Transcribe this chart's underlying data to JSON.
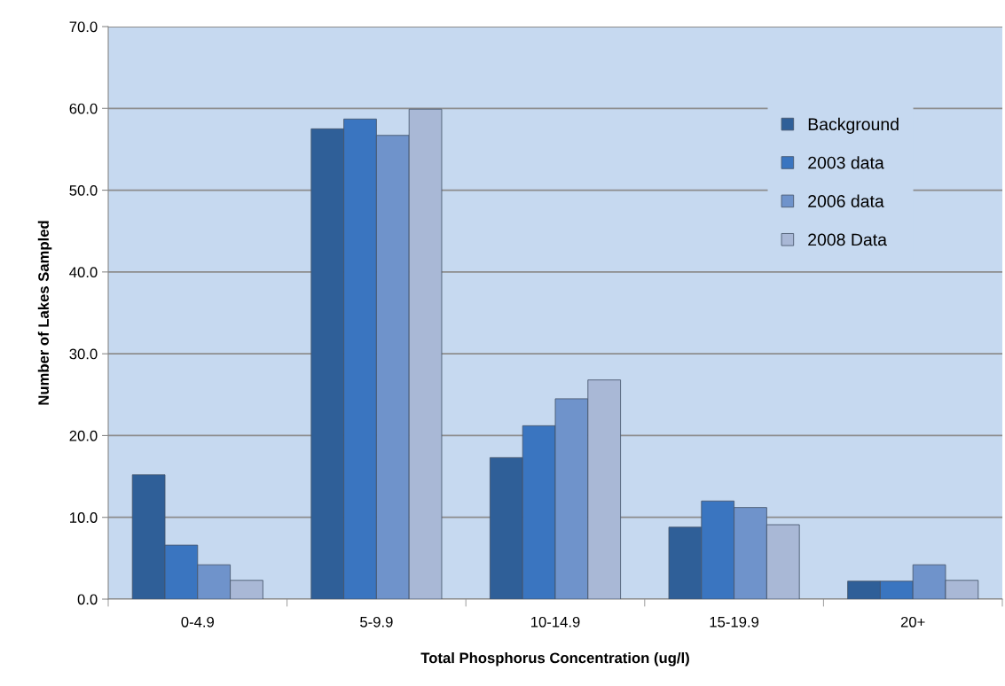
{
  "chart_data": {
    "type": "bar",
    "xlabel": "Total Phosphorus Concentration (ug/l)",
    "ylabel": "Number of Lakes Sampled",
    "categories": [
      "0-4.9",
      "5-9.9",
      "10-14.9",
      "15-19.9",
      "20+"
    ],
    "series": [
      {
        "name": "Background",
        "color": "#2f5f98",
        "values": [
          15.2,
          57.5,
          17.3,
          8.8,
          2.2
        ]
      },
      {
        "name": "2003 data",
        "color": "#3a75c0",
        "values": [
          6.6,
          58.7,
          21.2,
          12.0,
          2.2
        ]
      },
      {
        "name": "2006 data",
        "color": "#6f93cb",
        "values": [
          4.2,
          56.7,
          24.5,
          11.2,
          4.2
        ]
      },
      {
        "name": "2008 Data",
        "color": "#a9b8d6",
        "values": [
          2.3,
          59.9,
          26.8,
          9.1,
          2.3
        ]
      }
    ],
    "ylim": [
      0,
      70
    ],
    "yticks": [
      {
        "value": 0,
        "label": "0.0"
      },
      {
        "value": 10,
        "label": "10.0"
      },
      {
        "value": 20,
        "label": "20.0"
      },
      {
        "value": 30,
        "label": "30.0"
      },
      {
        "value": 40,
        "label": "40.0"
      },
      {
        "value": 50,
        "label": "50.0"
      },
      {
        "value": 60,
        "label": "60.0"
      },
      {
        "value": 70,
        "label": "70.0"
      }
    ],
    "grid": "y",
    "legend": "top right"
  }
}
